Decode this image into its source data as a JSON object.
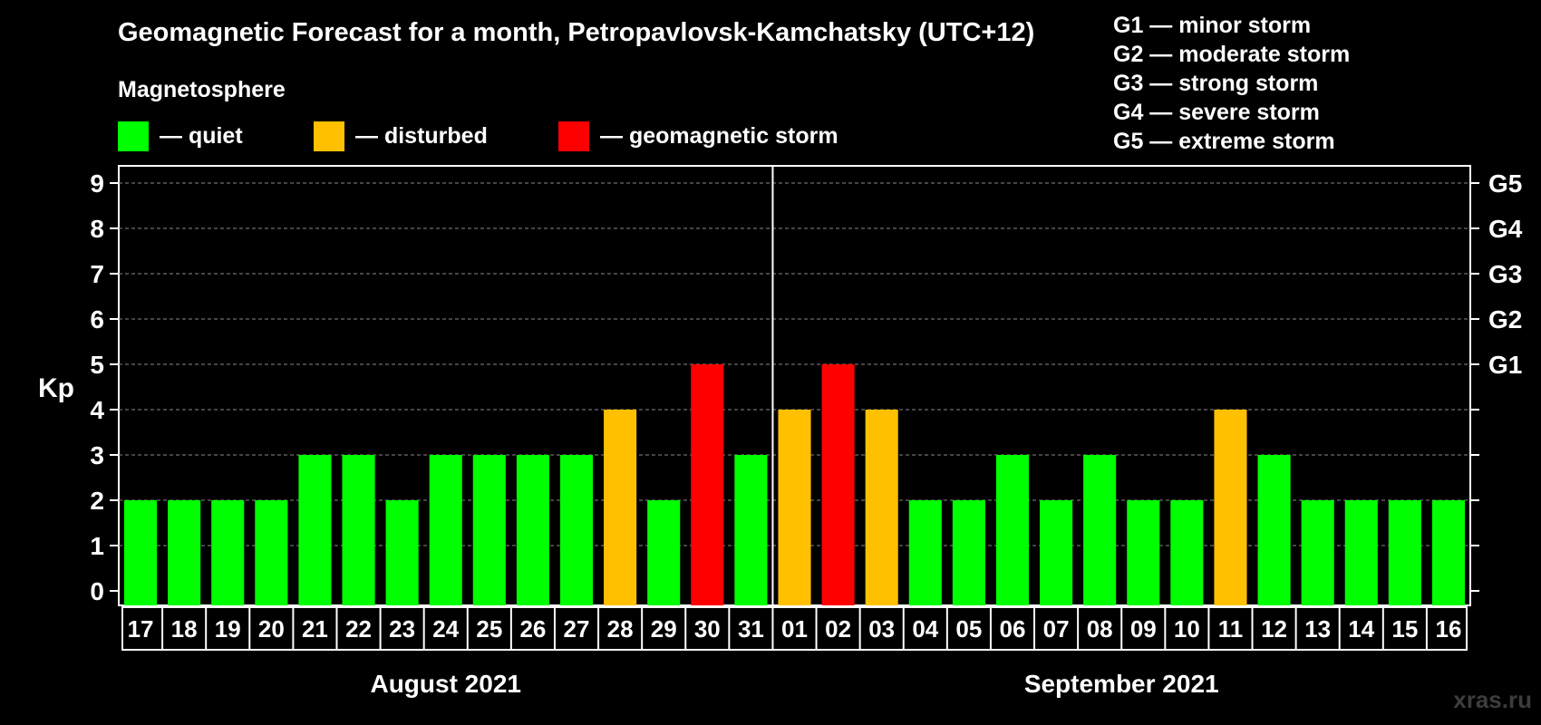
{
  "chart_data": {
    "type": "bar",
    "title": "Geomagnetic Forecast for a month, Petropavlovsk-Kamchatsky (UTC+12)",
    "subtitle": "Magnetosphere",
    "ylabel": "Kp",
    "ylim": [
      0,
      9
    ],
    "yticks": [
      "0",
      "1",
      "2",
      "3",
      "4",
      "5",
      "6",
      "7",
      "8",
      "9"
    ],
    "right_ticks": [
      {
        "kp": 5,
        "label": "G1"
      },
      {
        "kp": 6,
        "label": "G2"
      },
      {
        "kp": 7,
        "label": "G3"
      },
      {
        "kp": 8,
        "label": "G4"
      },
      {
        "kp": 9,
        "label": "G5"
      }
    ],
    "categories": [
      "17",
      "18",
      "19",
      "20",
      "21",
      "22",
      "23",
      "24",
      "25",
      "26",
      "27",
      "28",
      "29",
      "30",
      "31",
      "01",
      "02",
      "03",
      "04",
      "05",
      "06",
      "07",
      "08",
      "09",
      "10",
      "11",
      "12",
      "13",
      "14",
      "15",
      "16"
    ],
    "values": [
      2,
      2,
      2,
      2,
      3,
      3,
      2,
      3,
      3,
      3,
      3,
      4,
      2,
      5,
      3,
      4,
      5,
      4,
      2,
      2,
      3,
      2,
      3,
      2,
      2,
      4,
      3,
      2,
      2,
      2,
      2
    ],
    "months": [
      {
        "label": "August 2021",
        "start": 0,
        "end": 14
      },
      {
        "label": "September 2021",
        "start": 15,
        "end": 30
      }
    ],
    "month_divider_after_index": 14,
    "legend": [
      {
        "label": "— quiet",
        "color": "#00ff00"
      },
      {
        "label": "— disturbed",
        "color": "#ffc000"
      },
      {
        "label": "— geomagnetic storm",
        "color": "#ff0000"
      }
    ],
    "storm_scale": [
      "G1 — minor storm",
      "G2 — moderate storm",
      "G3 — strong storm",
      "G4 — severe storm",
      "G5 — extreme storm"
    ],
    "colors": {
      "quiet": "#00ff00",
      "disturbed": "#ffc000",
      "storm": "#ff0000",
      "background": "#000000",
      "grid": "#888888"
    }
  },
  "watermark": "xras.ru"
}
